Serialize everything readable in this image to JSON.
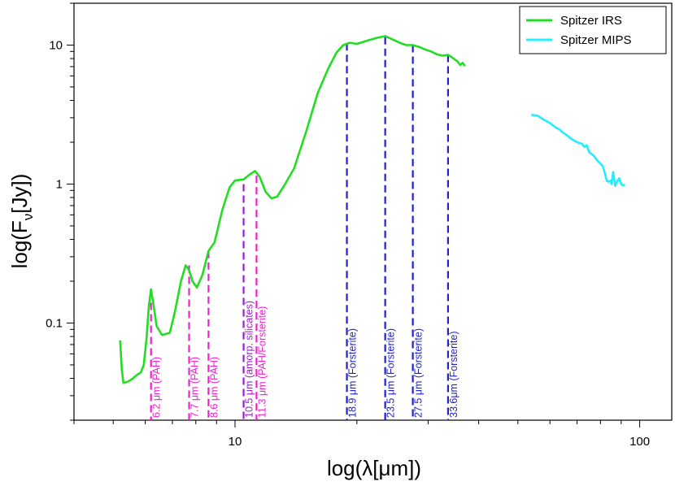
{
  "chart_data": {
    "type": "line",
    "xscale": "log",
    "yscale": "log",
    "xlim": [
      4.0,
      120.0
    ],
    "ylim": [
      0.02,
      20.0
    ],
    "xlabel": "log(λ[μm])",
    "ylabel_parts": {
      "main": "log(F",
      "sub": "ν",
      "tail": "[Jy])"
    },
    "x_tick_labels": [
      {
        "value": 10,
        "label": "10"
      },
      {
        "value": 100,
        "label": "100"
      }
    ],
    "y_tick_labels": [
      {
        "value": 0.1,
        "label": "0.1"
      },
      {
        "value": 1,
        "label": "1"
      },
      {
        "value": 10,
        "label": "10"
      }
    ],
    "series": [
      {
        "name": "Spitzer IRS",
        "color": "#22dd22",
        "points": [
          [
            5.2,
            0.075
          ],
          [
            5.25,
            0.046
          ],
          [
            5.3,
            0.037
          ],
          [
            5.45,
            0.038
          ],
          [
            5.6,
            0.04
          ],
          [
            5.7,
            0.042
          ],
          [
            5.85,
            0.044
          ],
          [
            5.95,
            0.05
          ],
          [
            6.05,
            0.08
          ],
          [
            6.12,
            0.13
          ],
          [
            6.2,
            0.175
          ],
          [
            6.3,
            0.13
          ],
          [
            6.4,
            0.095
          ],
          [
            6.6,
            0.082
          ],
          [
            6.9,
            0.085
          ],
          [
            7.1,
            0.12
          ],
          [
            7.35,
            0.2
          ],
          [
            7.55,
            0.26
          ],
          [
            7.7,
            0.24
          ],
          [
            7.85,
            0.2
          ],
          [
            8.05,
            0.18
          ],
          [
            8.3,
            0.22
          ],
          [
            8.6,
            0.33
          ],
          [
            8.9,
            0.38
          ],
          [
            9.3,
            0.65
          ],
          [
            9.7,
            0.95
          ],
          [
            10.0,
            1.06
          ],
          [
            10.5,
            1.08
          ],
          [
            10.9,
            1.18
          ],
          [
            11.2,
            1.24
          ],
          [
            11.5,
            1.13
          ],
          [
            11.9,
            0.88
          ],
          [
            12.3,
            0.79
          ],
          [
            12.7,
            0.81
          ],
          [
            13.3,
            1.0
          ],
          [
            14.0,
            1.3
          ],
          [
            15.0,
            2.4
          ],
          [
            16.0,
            4.5
          ],
          [
            17.0,
            6.8
          ],
          [
            17.8,
            8.8
          ],
          [
            18.5,
            10.0
          ],
          [
            19.2,
            10.4
          ],
          [
            20.0,
            10.2
          ],
          [
            21.5,
            10.9
          ],
          [
            22.5,
            11.3
          ],
          [
            23.5,
            11.6
          ],
          [
            24.5,
            11.0
          ],
          [
            25.5,
            10.4
          ],
          [
            26.5,
            10.0
          ],
          [
            27.5,
            10.0
          ],
          [
            28.5,
            9.7
          ],
          [
            29.5,
            9.3
          ],
          [
            30.5,
            9.0
          ],
          [
            31.5,
            8.6
          ],
          [
            32.5,
            8.4
          ],
          [
            33.6,
            8.5
          ],
          [
            34.5,
            8.1
          ],
          [
            35.5,
            7.6
          ],
          [
            36.0,
            7.2
          ],
          [
            36.5,
            7.45
          ],
          [
            37.0,
            7.05
          ]
        ]
      },
      {
        "name": "Spitzer MIPS",
        "color": "#22eeff",
        "points": [
          [
            54.0,
            3.15
          ],
          [
            56.0,
            3.1
          ],
          [
            58.0,
            2.9
          ],
          [
            60.0,
            2.75
          ],
          [
            61.0,
            2.65
          ],
          [
            62.0,
            2.55
          ],
          [
            63.0,
            2.5
          ],
          [
            64.0,
            2.4
          ],
          [
            66.0,
            2.25
          ],
          [
            68.0,
            2.1
          ],
          [
            70.0,
            2.0
          ],
          [
            72.0,
            1.95
          ],
          [
            73.0,
            1.85
          ],
          [
            74.0,
            1.9
          ],
          [
            75.0,
            1.7
          ],
          [
            77.0,
            1.6
          ],
          [
            79.0,
            1.45
          ],
          [
            80.0,
            1.4
          ],
          [
            81.0,
            1.35
          ],
          [
            82.0,
            1.2
          ],
          [
            83.0,
            1.05
          ],
          [
            84.0,
            1.04
          ],
          [
            84.8,
            1.06
          ],
          [
            85.2,
            1.0
          ],
          [
            86.0,
            1.22
          ],
          [
            87.0,
            0.97
          ],
          [
            88.0,
            1.05
          ],
          [
            89.0,
            1.1
          ],
          [
            90.0,
            1.0
          ],
          [
            91.0,
            0.98
          ],
          [
            92.0,
            0.99
          ]
        ]
      }
    ],
    "annotations": [
      {
        "x": 6.2,
        "y_top": 0.14,
        "label": "6.2 μm (PAH)",
        "color": "#ee22cc"
      },
      {
        "x": 7.7,
        "y_top": 0.26,
        "label": "7.7 μm (PAH)",
        "color": "#ee22cc"
      },
      {
        "x": 8.6,
        "y_top": 0.33,
        "label": "8.6 μm (PAH)",
        "color": "#ee22cc"
      },
      {
        "x": 10.5,
        "y_top": 1.0,
        "label": "10.5 μm (amorp. silicates)",
        "color": "#9922cc"
      },
      {
        "x": 11.3,
        "y_top": 1.15,
        "label": "11.3 μm (PAH/Forsterite)",
        "color": "#ee22cc"
      },
      {
        "x": 18.9,
        "y_top": 10.3,
        "label": "18.9 μm (Forsterite)",
        "color": "#2222cc"
      },
      {
        "x": 23.5,
        "y_top": 11.4,
        "label": "23.5 μm (Forsterite)",
        "color": "#2222cc"
      },
      {
        "x": 27.5,
        "y_top": 10.0,
        "label": "27.5 μm (Forsterite)",
        "color": "#2222cc"
      },
      {
        "x": 33.6,
        "y_top": 8.5,
        "label": "33.6μm (Forsterite)",
        "color": "#2222cc"
      }
    ],
    "legend": {
      "position": "top-right",
      "entries": [
        {
          "label": "Spitzer IRS",
          "color": "#22dd22"
        },
        {
          "label": "Spitzer MIPS",
          "color": "#22eeff"
        }
      ]
    },
    "grid": false
  }
}
